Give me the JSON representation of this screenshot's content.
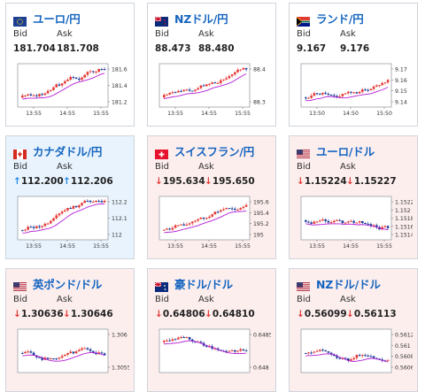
{
  "labels": {
    "bid": "Bid",
    "ask": "Ask"
  },
  "arrows": {
    "up": "↑",
    "down": "↓"
  },
  "colors": {
    "link": "#1565c0",
    "bull": "#e53935",
    "bear": "#1e3c9a",
    "ma": "#b31bd6",
    "up_bg": "#e8f3fd",
    "down_bg": "#fdeeee"
  },
  "cards": [
    {
      "pair": "ユーロ/円",
      "flag": "eu-flag",
      "state": "neutral",
      "bid": "181.704",
      "ask": "181.708",
      "direction": "",
      "chart_data": {
        "type": "candlestick",
        "yticks": [
          "181.6",
          "181.4",
          "181.2"
        ],
        "xticks": [
          "13:55",
          "14:55",
          "15:55"
        ],
        "trend": "up"
      }
    },
    {
      "pair": "NZドル/円",
      "flag": "nz-flag",
      "state": "neutral",
      "bid": "88.473",
      "ask": "88.480",
      "direction": "",
      "chart_data": {
        "type": "candlestick",
        "yticks": [
          "88.4",
          "88.3"
        ],
        "xticks": [
          "13:55",
          "14:55",
          "15:55"
        ],
        "trend": "up"
      }
    },
    {
      "pair": "ランド/円",
      "flag": "za-flag",
      "state": "neutral",
      "bid": "9.167",
      "ask": "9.176",
      "direction": "",
      "chart_data": {
        "type": "candlestick",
        "yticks": [
          "9.17",
          "9.16",
          "9.15",
          "9.14"
        ],
        "xticks": [
          "13:50",
          "14:50",
          "15:50"
        ],
        "trend": "up"
      }
    },
    {
      "pair": "カナダドル/円",
      "flag": "ca-flag",
      "state": "up",
      "bid": "112.200",
      "ask": "112.206",
      "direction": "up",
      "chart_data": {
        "type": "candlestick",
        "yticks": [
          "112.2",
          "112.1",
          "112"
        ],
        "xticks": [
          "13:55",
          "14:55",
          "15:55"
        ],
        "trend": "up"
      }
    },
    {
      "pair": "スイスフラン/円",
      "flag": "ch-flag",
      "state": "down",
      "bid": "195.634",
      "ask": "195.650",
      "direction": "down",
      "chart_data": {
        "type": "candlestick",
        "yticks": [
          "195.6",
          "195.4",
          "195.2",
          "195"
        ],
        "xticks": [
          "13:55",
          "14:55",
          "15:55"
        ],
        "trend": "up"
      }
    },
    {
      "pair": "ユーロ/ドル",
      "flag": "us-flag",
      "state": "down",
      "bid": "1.15224",
      "ask": "1.15227",
      "direction": "down",
      "chart_data": {
        "type": "candlestick",
        "yticks": [
          "1.1522",
          "1.152",
          "1.1518",
          "1.1516",
          "1.1514"
        ],
        "xticks": [
          "13:55",
          "14:55",
          "15:55"
        ],
        "trend": "flat"
      }
    },
    {
      "pair": "英ポンド/ドル",
      "flag": "us-flag",
      "state": "down",
      "bid": "1.30636",
      "ask": "1.30646",
      "direction": "down",
      "chart_data": {
        "type": "candlestick",
        "yticks": [
          "1.306",
          "1.3055"
        ],
        "xticks": [],
        "trend": "flat"
      }
    },
    {
      "pair": "豪ドル/ドル",
      "flag": "au-flag",
      "state": "down",
      "bid": "0.64806",
      "ask": "0.64810",
      "direction": "down",
      "chart_data": {
        "type": "candlestick",
        "yticks": [
          "0.6485",
          "0.648"
        ],
        "xticks": [],
        "trend": "down"
      }
    },
    {
      "pair": "NZドル/ドル",
      "flag": "us-flag",
      "state": "down",
      "bid": "0.56099",
      "ask": "0.56113",
      "direction": "down",
      "chart_data": {
        "type": "candlestick",
        "yticks": [
          "0.5612",
          "0.561",
          "0.5608",
          "0.5606"
        ],
        "xticks": [],
        "trend": "flat"
      }
    }
  ]
}
